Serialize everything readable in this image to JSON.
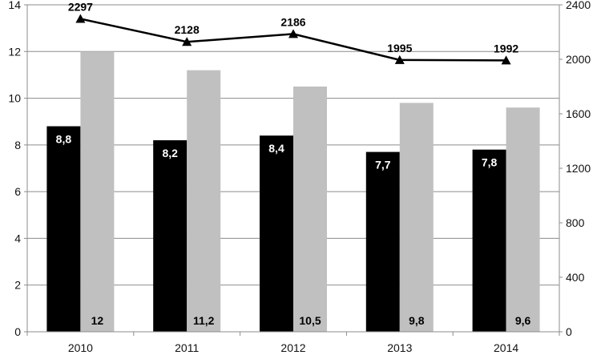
{
  "chart_data": {
    "type": "bar",
    "categories": [
      "2010",
      "2011",
      "2012",
      "2013",
      "2014"
    ],
    "series": [
      {
        "type": "bar",
        "axis": "left",
        "color": "#000000",
        "label_color": "#ffffff",
        "label_position": "top-inside",
        "values": [
          8.8,
          8.2,
          8.4,
          7.7,
          7.8
        ],
        "value_labels": [
          "8,8",
          "8,2",
          "8,4",
          "7,7",
          "7,8"
        ]
      },
      {
        "type": "bar",
        "axis": "left",
        "color": "#c0c0c0",
        "label_color": "#000000",
        "label_position": "bottom-inside",
        "values": [
          12,
          11.2,
          10.5,
          9.8,
          9.6
        ],
        "value_labels": [
          "12",
          "11,2",
          "10,5",
          "9,8",
          "9,6"
        ]
      },
      {
        "type": "line",
        "axis": "right",
        "color": "#000000",
        "marker": "triangle",
        "values": [
          2297,
          2128,
          2186,
          1995,
          1992
        ],
        "value_labels": [
          "2297",
          "2128",
          "2186",
          "1995",
          "1992"
        ]
      }
    ],
    "y_left": {
      "min": 0,
      "max": 14,
      "ticks": [
        0,
        2,
        4,
        6,
        8,
        10,
        12,
        14
      ],
      "tick_labels": [
        "0",
        "2",
        "4",
        "6",
        "8",
        "10",
        "12",
        "14"
      ]
    },
    "y_right": {
      "min": 0,
      "max": 2400,
      "ticks": [
        0,
        400,
        800,
        1200,
        1600,
        2000,
        2400
      ],
      "tick_labels": [
        "0",
        "400",
        "800",
        "1200",
        "1600",
        "2000",
        "2400"
      ]
    },
    "grid": true,
    "legend": "none",
    "title": "",
    "xlabel": "",
    "ylabel": ""
  }
}
